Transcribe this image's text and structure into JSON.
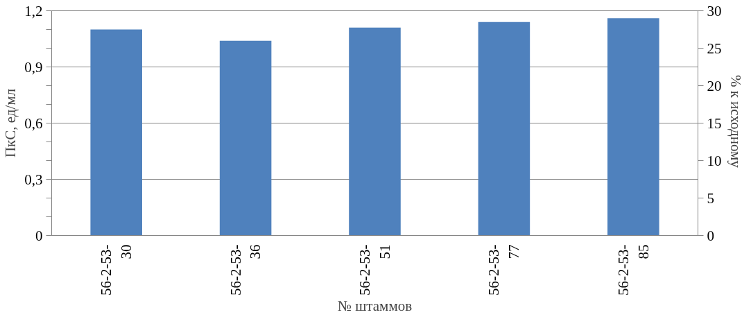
{
  "chart_data": {
    "type": "bar",
    "xlabel": "№ штаммов",
    "ylabel": "ПкС, ед/мл",
    "y2label": "% к  исходному",
    "categories": [
      "56-2-53-\n30",
      "56-2-53-\n36",
      "56-2-53-\n51",
      "56-2-53-\n77",
      "56-2-53-\n85"
    ],
    "values": [
      1.1,
      1.04,
      1.11,
      1.14,
      1.16
    ],
    "color": "#4f81bd",
    "ylim": [
      0,
      1.2
    ],
    "yticks": [
      {
        "value": 0,
        "label": "0"
      },
      {
        "value": 0.1,
        "label": null
      },
      {
        "value": 0.2,
        "label": null
      },
      {
        "value": 0.3,
        "label": "0,3"
      },
      {
        "value": 0.4,
        "label": null
      },
      {
        "value": 0.5,
        "label": null
      },
      {
        "value": 0.6,
        "label": "0,6"
      },
      {
        "value": 0.7,
        "label": null
      },
      {
        "value": 0.8,
        "label": null
      },
      {
        "value": 0.9,
        "label": "0,9"
      },
      {
        "value": 1.0,
        "label": null
      },
      {
        "value": 1.1,
        "label": null
      },
      {
        "value": 1.2,
        "label": "1,2"
      }
    ],
    "y2lim": [
      0,
      30
    ],
    "y2ticks": [
      0,
      5,
      10,
      15,
      20,
      25,
      30
    ],
    "grid": "y"
  }
}
